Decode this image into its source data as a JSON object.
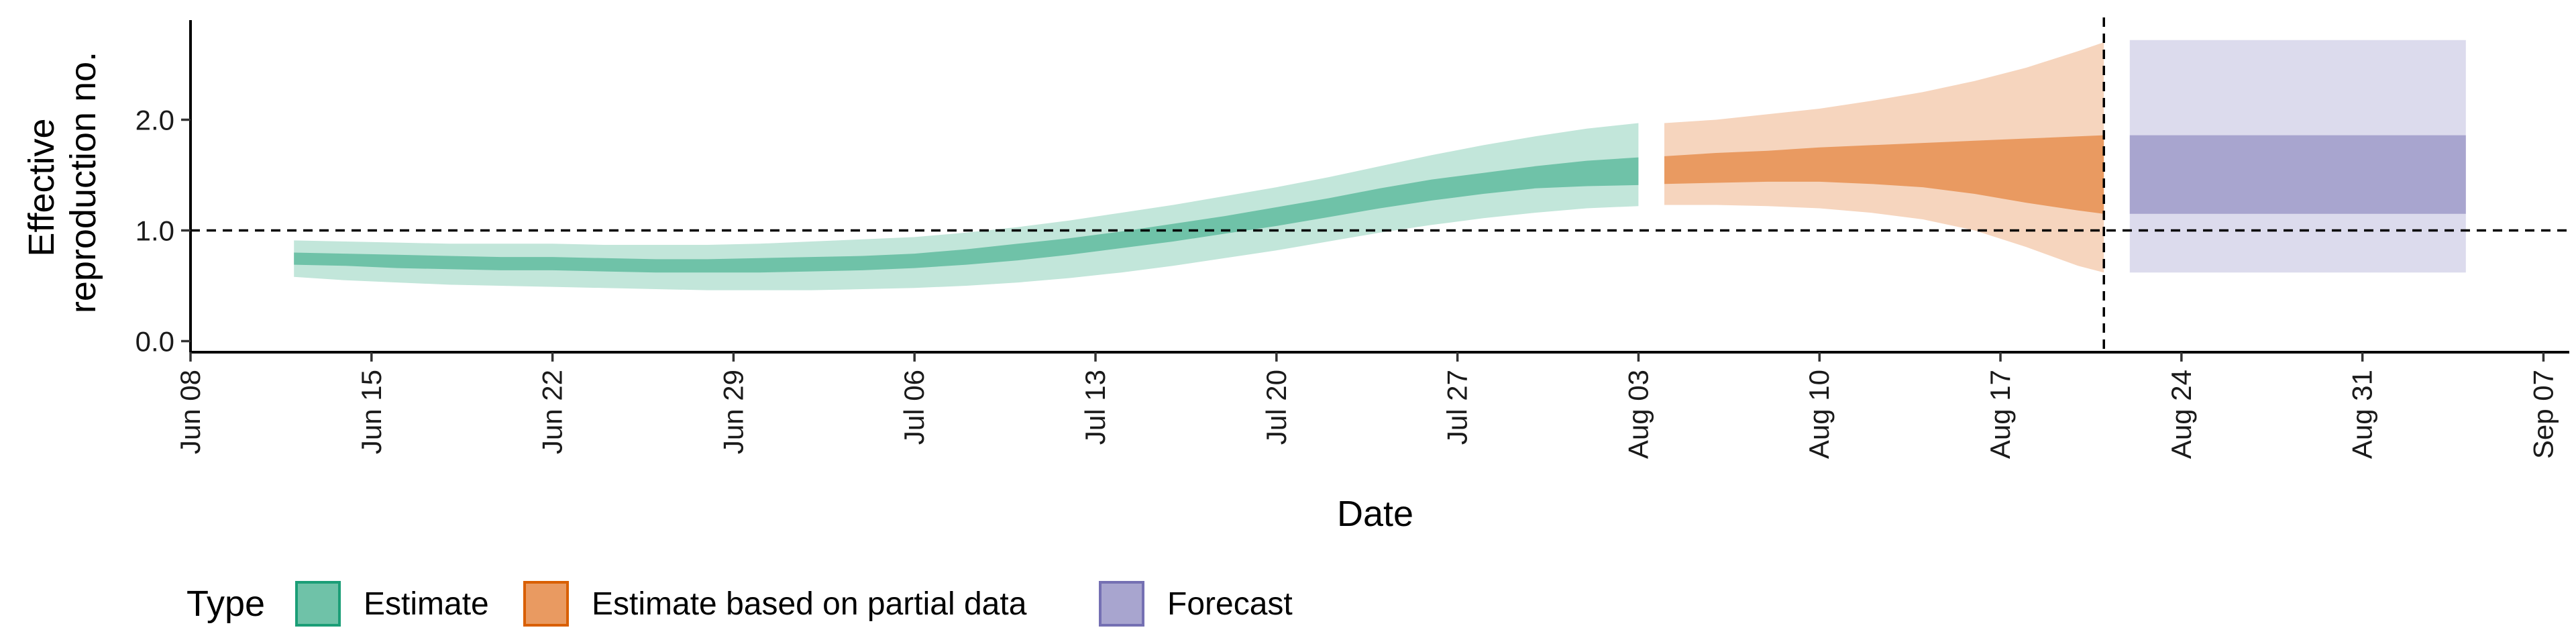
{
  "chart_data": {
    "type": "area",
    "xlabel": "Date",
    "ylabel": "Effective reproduction no.",
    "ylabel_lines": [
      "Effective",
      "reproduction no."
    ],
    "year": 2020,
    "x_range": [
      "2020-06-08",
      "2020-09-08"
    ],
    "ylim": [
      -0.1,
      2.9
    ],
    "x_ticks": [
      {
        "date": "2020-06-08",
        "label": "Jun 08"
      },
      {
        "date": "2020-06-15",
        "label": "Jun 15"
      },
      {
        "date": "2020-06-22",
        "label": "Jun 22"
      },
      {
        "date": "2020-06-29",
        "label": "Jun 29"
      },
      {
        "date": "2020-07-06",
        "label": "Jul 06"
      },
      {
        "date": "2020-07-13",
        "label": "Jul 13"
      },
      {
        "date": "2020-07-20",
        "label": "Jul 20"
      },
      {
        "date": "2020-07-27",
        "label": "Jul 27"
      },
      {
        "date": "2020-08-03",
        "label": "Aug 03"
      },
      {
        "date": "2020-08-10",
        "label": "Aug 10"
      },
      {
        "date": "2020-08-17",
        "label": "Aug 17"
      },
      {
        "date": "2020-08-24",
        "label": "Aug 24"
      },
      {
        "date": "2020-08-31",
        "label": "Aug 31"
      },
      {
        "date": "2020-09-07",
        "label": "Sep 07"
      }
    ],
    "y_ticks": [
      {
        "value": 0.0,
        "label": "0.0"
      },
      {
        "value": 1.0,
        "label": "1.0"
      },
      {
        "value": 2.0,
        "label": "2.0"
      }
    ],
    "reference_line": {
      "y": 1.0,
      "style": "dashed"
    },
    "forecast_start_line": {
      "date": "2020-08-21",
      "style": "dashed"
    },
    "grid": false,
    "legend": {
      "title": "Type",
      "position": "bottom",
      "entries": [
        {
          "label": "Estimate",
          "fill": "#6fc2a8",
          "stroke": "#1b9e77"
        },
        {
          "label": "Estimate based on partial data",
          "fill": "#e99a61",
          "stroke": "#d95f02"
        },
        {
          "label": "Forecast",
          "fill": "#a8a5cf",
          "stroke": "#7570b3"
        }
      ]
    },
    "series": [
      {
        "name": "Estimate",
        "color_outer": "#c2e6da",
        "color_inner": "#6fc2a8",
        "points": [
          {
            "date": "2020-06-12",
            "lower_90": 0.58,
            "lower_50": 0.69,
            "upper_50": 0.8,
            "upper_90": 0.91
          },
          {
            "date": "2020-06-14",
            "lower_90": 0.55,
            "lower_50": 0.68,
            "upper_50": 0.79,
            "upper_90": 0.9
          },
          {
            "date": "2020-06-16",
            "lower_90": 0.53,
            "lower_50": 0.66,
            "upper_50": 0.78,
            "upper_90": 0.89
          },
          {
            "date": "2020-06-18",
            "lower_90": 0.51,
            "lower_50": 0.65,
            "upper_50": 0.77,
            "upper_90": 0.88
          },
          {
            "date": "2020-06-20",
            "lower_90": 0.5,
            "lower_50": 0.64,
            "upper_50": 0.76,
            "upper_90": 0.88
          },
          {
            "date": "2020-06-22",
            "lower_90": 0.49,
            "lower_50": 0.64,
            "upper_50": 0.76,
            "upper_90": 0.88
          },
          {
            "date": "2020-06-24",
            "lower_90": 0.48,
            "lower_50": 0.63,
            "upper_50": 0.75,
            "upper_90": 0.87
          },
          {
            "date": "2020-06-26",
            "lower_90": 0.47,
            "lower_50": 0.62,
            "upper_50": 0.74,
            "upper_90": 0.87
          },
          {
            "date": "2020-06-28",
            "lower_90": 0.46,
            "lower_50": 0.62,
            "upper_50": 0.74,
            "upper_90": 0.87
          },
          {
            "date": "2020-06-30",
            "lower_90": 0.46,
            "lower_50": 0.62,
            "upper_50": 0.75,
            "upper_90": 0.88
          },
          {
            "date": "2020-07-02",
            "lower_90": 0.46,
            "lower_50": 0.63,
            "upper_50": 0.76,
            "upper_90": 0.9
          },
          {
            "date": "2020-07-04",
            "lower_90": 0.47,
            "lower_50": 0.64,
            "upper_50": 0.77,
            "upper_90": 0.92
          },
          {
            "date": "2020-07-06",
            "lower_90": 0.48,
            "lower_50": 0.66,
            "upper_50": 0.79,
            "upper_90": 0.94
          },
          {
            "date": "2020-07-08",
            "lower_90": 0.5,
            "lower_50": 0.69,
            "upper_50": 0.83,
            "upper_90": 0.98
          },
          {
            "date": "2020-07-10",
            "lower_90": 0.53,
            "lower_50": 0.73,
            "upper_50": 0.88,
            "upper_90": 1.03
          },
          {
            "date": "2020-07-12",
            "lower_90": 0.57,
            "lower_50": 0.78,
            "upper_50": 0.93,
            "upper_90": 1.09
          },
          {
            "date": "2020-07-14",
            "lower_90": 0.62,
            "lower_50": 0.84,
            "upper_50": 0.99,
            "upper_90": 1.16
          },
          {
            "date": "2020-07-16",
            "lower_90": 0.68,
            "lower_50": 0.9,
            "upper_50": 1.06,
            "upper_90": 1.23
          },
          {
            "date": "2020-07-18",
            "lower_90": 0.75,
            "lower_50": 0.97,
            "upper_50": 1.13,
            "upper_90": 1.31
          },
          {
            "date": "2020-07-20",
            "lower_90": 0.82,
            "lower_50": 1.04,
            "upper_50": 1.21,
            "upper_90": 1.39
          },
          {
            "date": "2020-07-22",
            "lower_90": 0.9,
            "lower_50": 1.12,
            "upper_50": 1.29,
            "upper_90": 1.48
          },
          {
            "date": "2020-07-24",
            "lower_90": 0.98,
            "lower_50": 1.2,
            "upper_50": 1.38,
            "upper_90": 1.58
          },
          {
            "date": "2020-07-26",
            "lower_90": 1.05,
            "lower_50": 1.27,
            "upper_50": 1.46,
            "upper_90": 1.68
          },
          {
            "date": "2020-07-28",
            "lower_90": 1.11,
            "lower_50": 1.33,
            "upper_50": 1.52,
            "upper_90": 1.77
          },
          {
            "date": "2020-07-30",
            "lower_90": 1.16,
            "lower_50": 1.38,
            "upper_50": 1.58,
            "upper_90": 1.85
          },
          {
            "date": "2020-08-01",
            "lower_90": 1.2,
            "lower_50": 1.4,
            "upper_50": 1.63,
            "upper_90": 1.92
          },
          {
            "date": "2020-08-03",
            "lower_90": 1.22,
            "lower_50": 1.41,
            "upper_50": 1.66,
            "upper_90": 1.97
          }
        ]
      },
      {
        "name": "Estimate based on partial data",
        "color_outer": "#f6d5be",
        "color_inner": "#e99a61",
        "points": [
          {
            "date": "2020-08-04",
            "lower_90": 1.23,
            "lower_50": 1.42,
            "upper_50": 1.67,
            "upper_90": 1.97
          },
          {
            "date": "2020-08-06",
            "lower_90": 1.23,
            "lower_50": 1.43,
            "upper_50": 1.7,
            "upper_90": 2.0
          },
          {
            "date": "2020-08-08",
            "lower_90": 1.22,
            "lower_50": 1.44,
            "upper_50": 1.72,
            "upper_90": 2.05
          },
          {
            "date": "2020-08-10",
            "lower_90": 1.2,
            "lower_50": 1.44,
            "upper_50": 1.75,
            "upper_90": 2.1
          },
          {
            "date": "2020-08-12",
            "lower_90": 1.16,
            "lower_50": 1.42,
            "upper_50": 1.77,
            "upper_90": 2.17
          },
          {
            "date": "2020-08-14",
            "lower_90": 1.1,
            "lower_50": 1.39,
            "upper_50": 1.79,
            "upper_90": 2.25
          },
          {
            "date": "2020-08-16",
            "lower_90": 1.0,
            "lower_50": 1.33,
            "upper_50": 1.81,
            "upper_90": 2.35
          },
          {
            "date": "2020-08-18",
            "lower_90": 0.85,
            "lower_50": 1.25,
            "upper_50": 1.83,
            "upper_90": 2.47
          },
          {
            "date": "2020-08-20",
            "lower_90": 0.68,
            "lower_50": 1.18,
            "upper_50": 1.85,
            "upper_90": 2.62
          },
          {
            "date": "2020-08-21",
            "lower_90": 0.62,
            "lower_50": 1.15,
            "upper_50": 1.86,
            "upper_90": 2.7
          }
        ]
      },
      {
        "name": "Forecast",
        "color_outer": "#dcdbed",
        "color_inner": "#a8a5cf",
        "points": [
          {
            "date": "2020-08-22",
            "lower_90": 0.62,
            "lower_50": 1.15,
            "upper_50": 1.86,
            "upper_90": 2.72
          },
          {
            "date": "2020-09-04",
            "lower_90": 0.62,
            "lower_50": 1.15,
            "upper_50": 1.86,
            "upper_90": 2.72
          }
        ]
      }
    ]
  }
}
